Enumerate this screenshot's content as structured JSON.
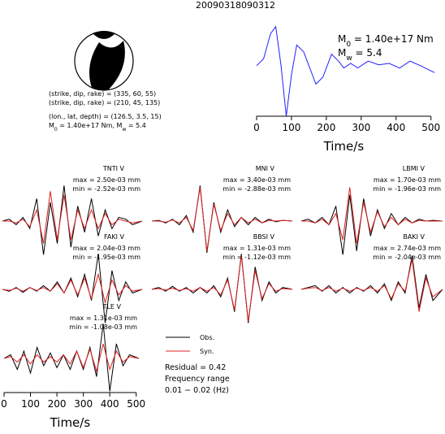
{
  "title": "20090318090312",
  "mechanism": {
    "lines": [
      "(strike, dip, rake) = (335, 60, 55)",
      "(strike, dip, rake) = (210, 45, 135)",
      "(lon., lat, depth) = (126.5, 3.5, 15)"
    ],
    "moment_line": [
      "M",
      "0",
      " = 1.40e+17 Nm, M",
      "w",
      " = 5.4"
    ]
  },
  "chart_data": [
    {
      "type": "line",
      "x": [
        0,
        20,
        40,
        55,
        70,
        85,
        100,
        115,
        135,
        150,
        170,
        190,
        215,
        235,
        250,
        270,
        290,
        320,
        350,
        380,
        410,
        440,
        470,
        510
      ],
      "values": [
        0.1,
        0.25,
        0.8,
        0.95,
        0.1,
        -1,
        -0.1,
        0.55,
        0.4,
        0.1,
        -0.3,
        -0.15,
        0.35,
        0.2,
        0.05,
        0.15,
        0.05,
        0.2,
        0.12,
        0.15,
        0.05,
        0.2,
        0.1,
        -0.05
      ],
      "color": "#2020ff",
      "xlim": [
        0,
        510
      ],
      "ylim": [
        -1,
        1
      ],
      "xticks": [
        0,
        100,
        200,
        300,
        400,
        500
      ],
      "xlabel": "Time/s",
      "annotations": [
        [
          "M",
          "0",
          " = 1.40e+17 Nm"
        ],
        [
          "M",
          "w",
          " = 5.4"
        ]
      ]
    },
    {
      "type": "line",
      "title": "TNTI V",
      "max_label": "max = 2.50e-03 mm",
      "min_label": "min = -2.52e-03 mm",
      "x": [
        0,
        25,
        50,
        75,
        100,
        125,
        150,
        175,
        200,
        225,
        250,
        275,
        300,
        325,
        350,
        375,
        400,
        425,
        450,
        475,
        510
      ],
      "xlim": [
        0,
        510
      ],
      "ylim": [
        -1,
        1
      ],
      "series": [
        {
          "color": "#000000",
          "values": [
            0,
            0.05,
            -0.1,
            0.1,
            -0.2,
            0.6,
            -0.9,
            0.5,
            -0.6,
            0.95,
            -0.7,
            0.4,
            -0.3,
            0.6,
            -0.4,
            0.3,
            -0.2,
            0.1,
            0.05,
            -0.1,
            0
          ]
        },
        {
          "color": "#e02020",
          "values": [
            0,
            0,
            -0.05,
            0.05,
            -0.15,
            0.3,
            -0.6,
            0.8,
            -0.5,
            0.7,
            -0.5,
            0.3,
            -0.2,
            0.3,
            -0.2,
            0.2,
            -0.1,
            0.05,
            0,
            -0.05,
            0
          ]
        }
      ]
    },
    {
      "type": "line",
      "title": "MNI V",
      "max_label": "max = 3.40e-03 mm",
      "min_label": "min = -2.88e-03 mm",
      "x": [
        0,
        25,
        50,
        75,
        100,
        125,
        150,
        175,
        200,
        225,
        250,
        275,
        300,
        325,
        350,
        375,
        400,
        425,
        450,
        475,
        510
      ],
      "xlim": [
        0,
        510
      ],
      "ylim": [
        -1,
        1
      ],
      "series": [
        {
          "color": "#000000",
          "values": [
            0,
            0.02,
            -0.05,
            0.05,
            -0.1,
            0.15,
            -0.3,
            0.95,
            -0.85,
            0.5,
            -0.3,
            0.3,
            -0.15,
            0.1,
            -0.1,
            0.1,
            -0.05,
            0.05,
            -0.02,
            0.02,
            0
          ]
        },
        {
          "color": "#e02020",
          "values": [
            0,
            0,
            -0.03,
            0.03,
            -0.05,
            0.1,
            -0.25,
            0.9,
            -0.8,
            0.45,
            -0.25,
            0.2,
            -0.1,
            0.1,
            -0.05,
            0.05,
            -0.05,
            0.02,
            0,
            0.02,
            0
          ]
        }
      ]
    },
    {
      "type": "line",
      "title": "LBMI V",
      "max_label": "max = 1.70e-03 mm",
      "min_label": "min = -1.96e-03 mm",
      "x": [
        0,
        25,
        50,
        75,
        100,
        125,
        150,
        175,
        200,
        225,
        250,
        275,
        300,
        325,
        350,
        375,
        400,
        425,
        450,
        475,
        510
      ],
      "xlim": [
        0,
        510
      ],
      "ylim": [
        -1,
        1
      ],
      "series": [
        {
          "color": "#000000",
          "values": [
            0,
            0.05,
            -0.05,
            0.1,
            -0.1,
            0.4,
            -0.9,
            0.7,
            -0.8,
            0.6,
            -0.4,
            0.3,
            -0.2,
            0.2,
            -0.1,
            0.1,
            -0.05,
            0.05,
            0,
            0.02,
            0
          ]
        },
        {
          "color": "#e02020",
          "values": [
            0,
            0,
            -0.05,
            0.05,
            -0.1,
            0.2,
            -0.5,
            0.9,
            -0.6,
            0.5,
            -0.3,
            0.25,
            -0.15,
            0.1,
            -0.1,
            0.05,
            -0.05,
            0.02,
            0,
            0,
            0
          ]
        }
      ]
    },
    {
      "type": "line",
      "title": "FAKI V",
      "max_label": "max = 2.04e-03 mm",
      "min_label": "min = -1.95e-03 mm",
      "x": [
        0,
        25,
        50,
        75,
        100,
        125,
        150,
        175,
        200,
        225,
        250,
        275,
        300,
        325,
        350,
        375,
        400,
        425,
        450,
        475,
        510
      ],
      "xlim": [
        0,
        510
      ],
      "ylim": [
        -1,
        1
      ],
      "series": [
        {
          "color": "#000000",
          "values": [
            0,
            -0.05,
            0.05,
            -0.08,
            0.05,
            -0.05,
            0.1,
            -0.05,
            0.2,
            -0.1,
            0.3,
            -0.2,
            0.4,
            -0.3,
            0.95,
            -0.9,
            0.5,
            -0.3,
            0.2,
            -0.1,
            0
          ]
        },
        {
          "color": "#e02020",
          "values": [
            0,
            -0.03,
            0.03,
            -0.05,
            0.05,
            -0.03,
            0.05,
            -0.05,
            0.15,
            -0.1,
            0.25,
            -0.15,
            0.3,
            -0.25,
            0.4,
            -0.35,
            0.25,
            -0.15,
            0.1,
            -0.05,
            0
          ]
        }
      ]
    },
    {
      "type": "line",
      "title": "BBSI V",
      "max_label": "max = 1.31e-03 mm",
      "min_label": "min = -1.12e-03 mm",
      "x": [
        0,
        25,
        50,
        75,
        100,
        125,
        150,
        175,
        200,
        225,
        250,
        275,
        300,
        325,
        350,
        375,
        400,
        425,
        450,
        475,
        510
      ],
      "xlim": [
        0,
        510
      ],
      "ylim": [
        -1,
        1
      ],
      "series": [
        {
          "color": "#000000",
          "values": [
            0,
            0.05,
            -0.05,
            0.08,
            -0.05,
            0.05,
            -0.1,
            0.05,
            -0.1,
            0.1,
            -0.2,
            0.3,
            -0.6,
            0.95,
            -0.9,
            0.6,
            -0.3,
            0.2,
            -0.1,
            0.05,
            0
          ]
        },
        {
          "color": "#e02020",
          "values": [
            0,
            0.02,
            -0.02,
            0.03,
            -0.03,
            0.02,
            -0.05,
            0.05,
            -0.05,
            0.05,
            -0.15,
            0.25,
            -0.55,
            0.9,
            -0.85,
            0.5,
            -0.25,
            0.15,
            -0.05,
            0.02,
            0
          ]
        }
      ]
    },
    {
      "type": "line",
      "title": "BAKI V",
      "max_label": "max = 2.74e-03 mm",
      "min_label": "min = -2.04e-03 mm",
      "x": [
        0,
        25,
        50,
        75,
        100,
        125,
        150,
        175,
        200,
        225,
        250,
        275,
        300,
        325,
        350,
        375,
        400,
        425,
        450,
        475,
        510
      ],
      "xlim": [
        0,
        510
      ],
      "ylim": [
        -1,
        1
      ],
      "series": [
        {
          "color": "#000000",
          "values": [
            0,
            0.05,
            0.1,
            -0.05,
            0.1,
            -0.1,
            0.05,
            -0.1,
            0.05,
            -0.05,
            0.1,
            -0.1,
            0.15,
            -0.3,
            0.2,
            -0.1,
            0.9,
            -0.5,
            0.4,
            -0.3,
            0
          ]
        },
        {
          "color": "#e02020",
          "values": [
            0,
            0.03,
            0.05,
            -0.03,
            0.05,
            -0.05,
            0.03,
            -0.05,
            0.03,
            -0.03,
            0.05,
            -0.05,
            0.1,
            -0.25,
            0.15,
            -0.05,
            0.8,
            -0.6,
            0.3,
            -0.2,
            0
          ]
        }
      ]
    },
    {
      "type": "line",
      "title": "TLE V",
      "max_label": "max = 1.31e-03 mm",
      "min_label": "min = -1.08e-03 mm",
      "x": [
        0,
        25,
        50,
        75,
        100,
        125,
        150,
        175,
        200,
        225,
        250,
        275,
        300,
        325,
        350,
        375,
        400,
        425,
        450,
        475,
        510
      ],
      "xlim": [
        0,
        510
      ],
      "ylim": [
        -1,
        1
      ],
      "xticks": [
        0,
        100,
        200,
        300,
        400,
        500
      ],
      "xlabel": "Time/s",
      "series": [
        {
          "name": "Obs.",
          "color": "#000000",
          "values": [
            0,
            0.1,
            -0.3,
            0.2,
            -0.4,
            0.3,
            -0.2,
            0.15,
            -0.25,
            0.1,
            -0.3,
            0.2,
            -0.3,
            0.3,
            -0.5,
            0.95,
            -0.9,
            0.4,
            -0.2,
            0.1,
            0
          ]
        },
        {
          "name": "Syn.",
          "color": "#e02020",
          "values": [
            0,
            0.05,
            -0.1,
            0.1,
            -0.15,
            0.1,
            -0.1,
            0.05,
            -0.1,
            0.1,
            -0.15,
            0.2,
            -0.25,
            0.25,
            -0.35,
            0.4,
            -0.3,
            0.2,
            -0.1,
            0.05,
            0
          ]
        }
      ],
      "annotations": [
        "Residual = 0.42",
        "Frequency range",
        "0.01 − 0.02 (Hz)"
      ]
    }
  ]
}
